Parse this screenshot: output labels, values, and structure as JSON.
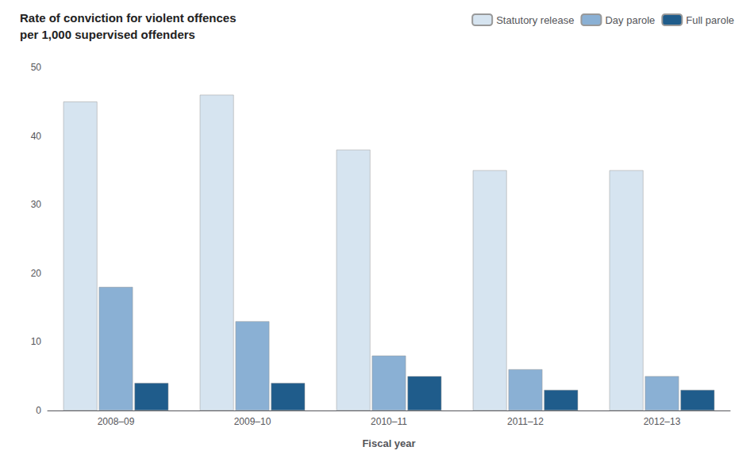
{
  "chart_data": {
    "type": "bar",
    "title": "Rate of conviction for violent offences",
    "subtitle": "per 1,000 supervised offenders",
    "xlabel": "Fiscal year",
    "categories": [
      "2008–09",
      "2009–10",
      "2010–11",
      "2011–12",
      "2012–13"
    ],
    "series": [
      {
        "name": "Statutory release",
        "color": "#d6e4f0",
        "values": [
          45,
          46,
          38,
          35,
          35
        ]
      },
      {
        "name": "Day parole",
        "color": "#8ab0d4",
        "values": [
          18,
          13,
          8,
          6,
          5
        ]
      },
      {
        "name": "Full parole",
        "color": "#1f5c8b",
        "values": [
          4,
          4,
          5,
          3,
          3
        ]
      }
    ],
    "ylim": [
      0,
      50
    ],
    "yticks": [
      0,
      10,
      20,
      30,
      40,
      50
    ],
    "grid": false,
    "legend": "upper right"
  }
}
